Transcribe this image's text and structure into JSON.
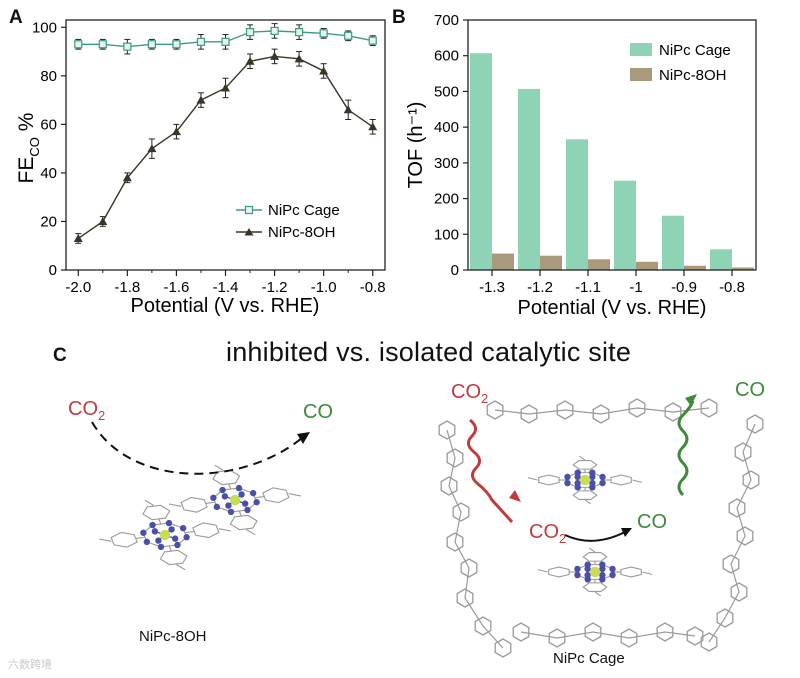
{
  "chart_data": [
    {
      "panel": "A",
      "type": "line",
      "xlabel": "Potential (V vs. RHE)",
      "ylabel_main": "FE",
      "ylabel_sub": "CO",
      "ylabel_unit": "%",
      "xlim": [
        -2.05,
        -0.75
      ],
      "ylim": [
        0,
        103
      ],
      "xticks": [
        -2.0,
        -1.8,
        -1.6,
        -1.4,
        -1.2,
        -1.0,
        -0.8
      ],
      "xtick_labels": [
        "-2.0",
        "-1.8",
        "-1.6",
        "-1.4",
        "-1.2",
        "-1.0",
        "-0.8"
      ],
      "yticks": [
        0,
        20,
        40,
        60,
        80,
        100
      ],
      "ytick_labels": [
        "0",
        "20",
        "40",
        "60",
        "80",
        "100"
      ],
      "legend": "bottom-right",
      "series": [
        {
          "name": "NiPc Cage",
          "marker": "square",
          "color": "#3a9a86",
          "x": [
            -2.0,
            -1.9,
            -1.8,
            -1.7,
            -1.6,
            -1.5,
            -1.4,
            -1.3,
            -1.2,
            -1.1,
            -1.0,
            -0.9,
            -0.8
          ],
          "y": [
            93,
            93,
            92,
            93,
            93,
            94,
            94,
            98,
            98.5,
            98,
            97.5,
            96.5,
            94.5
          ],
          "err": [
            2,
            2,
            3,
            2,
            2,
            3,
            3,
            3,
            3,
            3,
            2,
            2,
            2
          ]
        },
        {
          "name": "NiPc-8OH",
          "marker": "triangle",
          "color": "#3a3526",
          "x": [
            -2.0,
            -1.9,
            -1.8,
            -1.7,
            -1.6,
            -1.5,
            -1.4,
            -1.3,
            -1.2,
            -1.1,
            -1.0,
            -0.9,
            -0.8
          ],
          "y": [
            13,
            20,
            38,
            50,
            57,
            70,
            75,
            86,
            88,
            87,
            82,
            66,
            59
          ],
          "err": [
            2,
            2,
            2,
            4,
            3,
            3,
            4,
            3,
            3,
            3,
            3,
            4,
            3
          ]
        }
      ]
    },
    {
      "panel": "B",
      "type": "bar",
      "xlabel": "Potential (V vs. RHE)",
      "ylabel": "TOF (h⁻¹)",
      "ylim": [
        0,
        700
      ],
      "yticks": [
        0,
        100,
        200,
        300,
        400,
        500,
        600,
        700
      ],
      "ytick_labels": [
        "0",
        "100",
        "200",
        "300",
        "400",
        "500",
        "600",
        "700"
      ],
      "categories": [
        "-1.3",
        "-1.2",
        "-1.1",
        "-1",
        "-0.9",
        "-0.8"
      ],
      "legend": "top-right",
      "series": [
        {
          "name": "NiPc Cage",
          "color": "#8fd3b7",
          "values": [
            607,
            507,
            366,
            250,
            152,
            58
          ]
        },
        {
          "name": "NiPc-8OH",
          "color": "#a89a7a",
          "values": [
            46,
            40,
            30,
            23,
            12,
            7
          ]
        }
      ]
    }
  ],
  "panels": {
    "a": "A",
    "b": "B",
    "c": "C"
  },
  "panel_c": {
    "title": "inhibited vs. isolated catalytic site",
    "left": {
      "co2_main": "CO",
      "co2_sub": "2",
      "co": "CO",
      "caption": "NiPc-8OH"
    },
    "right": {
      "co2_top_main": "CO",
      "co2_top_sub": "2",
      "co_top": "CO",
      "co2_mid_main": "CO",
      "co2_mid_sub": "2",
      "co_mid": "CO",
      "caption": "NiPc Cage"
    },
    "colors": {
      "co2": "#c23b3b",
      "co": "#3c8a3c",
      "bond": "#9a9a9a",
      "n_atom": "#4a50a8",
      "ni_atom": "#c8dd55"
    }
  },
  "watermark": "六数跨境"
}
